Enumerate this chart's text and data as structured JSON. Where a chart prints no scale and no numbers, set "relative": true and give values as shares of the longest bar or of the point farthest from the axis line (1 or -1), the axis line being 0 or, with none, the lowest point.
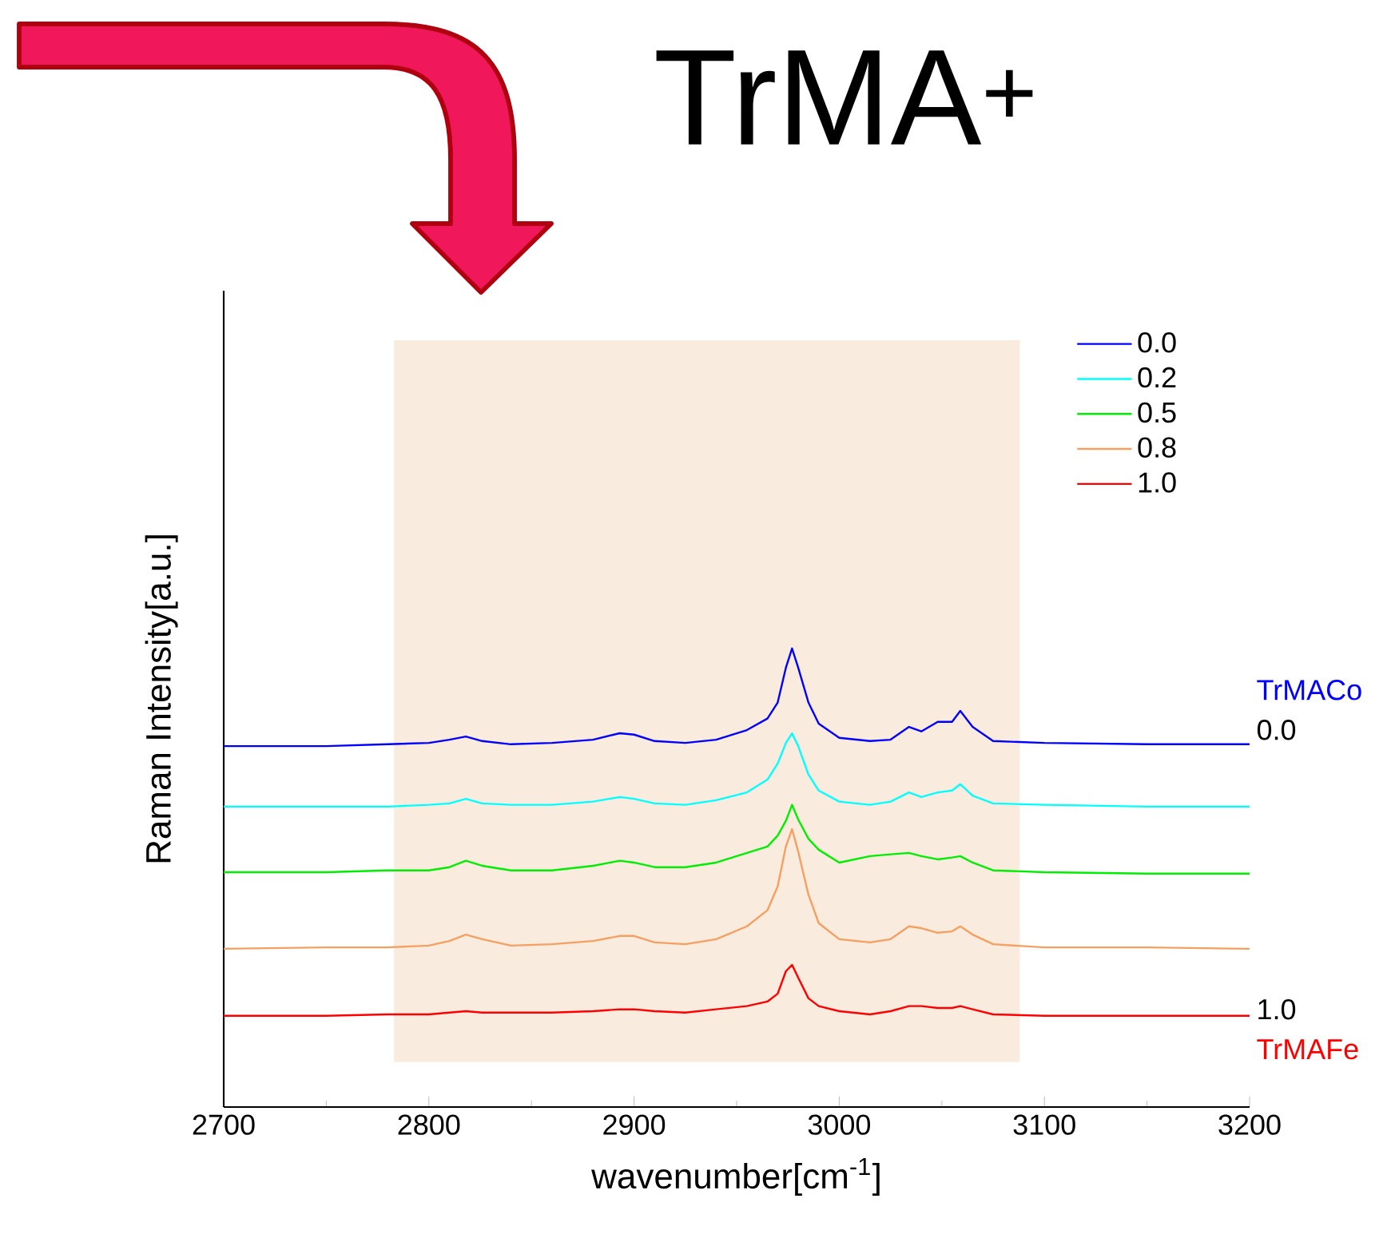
{
  "chart_data": {
    "type": "line",
    "title": "TrMA$^{+}$",
    "xlabel": "wavenumber[cm$^{-1}$]",
    "ylabel": "Raman Intensity[a.u.]",
    "relative": true,
    "legend": "top right",
    "xlim": [
      2700,
      3200
    ],
    "xticks": [
      2700,
      2800,
      2900,
      3000,
      3100,
      3200
    ],
    "bands": [
      {
        "axis": "x",
        "from": 2783,
        "to": 3088,
        "color": "#faebdf"
      }
    ],
    "annotations": [
      "TrMACo",
      "0.0",
      "1.0",
      "TrMAFe"
    ],
    "x": [
      2700,
      2750,
      2780,
      2800,
      2810,
      2818,
      2826,
      2840,
      2860,
      2880,
      2893,
      2900,
      2910,
      2925,
      2940,
      2955,
      2965,
      2970,
      2974,
      2977,
      2980,
      2985,
      2990,
      3000,
      3015,
      3025,
      3034,
      3040,
      3048,
      3055,
      3059,
      3065,
      3075,
      3100,
      3150,
      3200
    ],
    "series": [
      {
        "name": "0.0",
        "color": "#0000ff",
        "values": [
          0.787,
          0.787,
          0.791,
          0.794,
          0.801,
          0.808,
          0.798,
          0.791,
          0.794,
          0.801,
          0.815,
          0.812,
          0.798,
          0.794,
          0.801,
          0.822,
          0.847,
          0.882,
          0.958,
          1.0,
          0.958,
          0.882,
          0.836,
          0.805,
          0.798,
          0.801,
          0.829,
          0.819,
          0.84,
          0.84,
          0.864,
          0.829,
          0.798,
          0.794,
          0.791,
          0.791
        ]
      },
      {
        "name": "0.2",
        "color": "#00ffff",
        "values": [
          0.655,
          0.655,
          0.655,
          0.659,
          0.662,
          0.672,
          0.662,
          0.659,
          0.659,
          0.666,
          0.676,
          0.672,
          0.662,
          0.659,
          0.669,
          0.686,
          0.714,
          0.749,
          0.794,
          0.815,
          0.787,
          0.725,
          0.69,
          0.666,
          0.659,
          0.666,
          0.686,
          0.676,
          0.686,
          0.69,
          0.704,
          0.679,
          0.662,
          0.659,
          0.655,
          0.655
        ]
      },
      {
        "name": "0.5",
        "color": "#00ee00",
        "values": [
          0.512,
          0.512,
          0.516,
          0.516,
          0.523,
          0.537,
          0.526,
          0.516,
          0.516,
          0.526,
          0.537,
          0.533,
          0.523,
          0.523,
          0.533,
          0.554,
          0.568,
          0.592,
          0.624,
          0.659,
          0.627,
          0.585,
          0.561,
          0.533,
          0.547,
          0.551,
          0.554,
          0.547,
          0.54,
          0.544,
          0.547,
          0.533,
          0.516,
          0.512,
          0.509,
          0.509
        ]
      },
      {
        "name": "0.8",
        "color": "#f5a060",
        "values": [
          0.345,
          0.348,
          0.348,
          0.352,
          0.362,
          0.376,
          0.366,
          0.352,
          0.355,
          0.362,
          0.373,
          0.373,
          0.359,
          0.355,
          0.366,
          0.394,
          0.429,
          0.481,
          0.568,
          0.606,
          0.557,
          0.463,
          0.401,
          0.366,
          0.359,
          0.366,
          0.394,
          0.39,
          0.38,
          0.383,
          0.394,
          0.376,
          0.355,
          0.348,
          0.348,
          0.345
        ]
      },
      {
        "name": "1.0",
        "color": "#ff0000",
        "values": [
          0.199,
          0.199,
          0.202,
          0.202,
          0.206,
          0.209,
          0.206,
          0.206,
          0.206,
          0.209,
          0.213,
          0.213,
          0.209,
          0.206,
          0.213,
          0.22,
          0.23,
          0.247,
          0.296,
          0.31,
          0.282,
          0.237,
          0.22,
          0.209,
          0.202,
          0.209,
          0.22,
          0.22,
          0.216,
          0.216,
          0.22,
          0.213,
          0.202,
          0.199,
          0.199,
          0.199
        ]
      }
    ]
  }
}
